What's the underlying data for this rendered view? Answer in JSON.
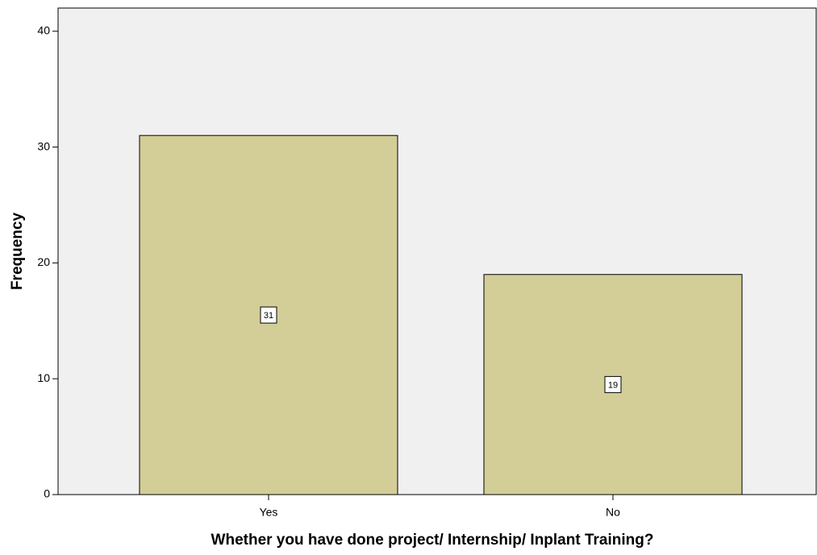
{
  "chart_data": {
    "type": "bar",
    "xlabel": "Whether you have done project/ Internship/ Inplant Training?",
    "ylabel": "Frequency",
    "categories": [
      "Yes",
      "No"
    ],
    "values": [
      31,
      19
    ],
    "color": "#d3ce97",
    "ylim": [
      0,
      42
    ],
    "yticks": [
      0,
      10,
      20,
      30,
      40
    ]
  }
}
